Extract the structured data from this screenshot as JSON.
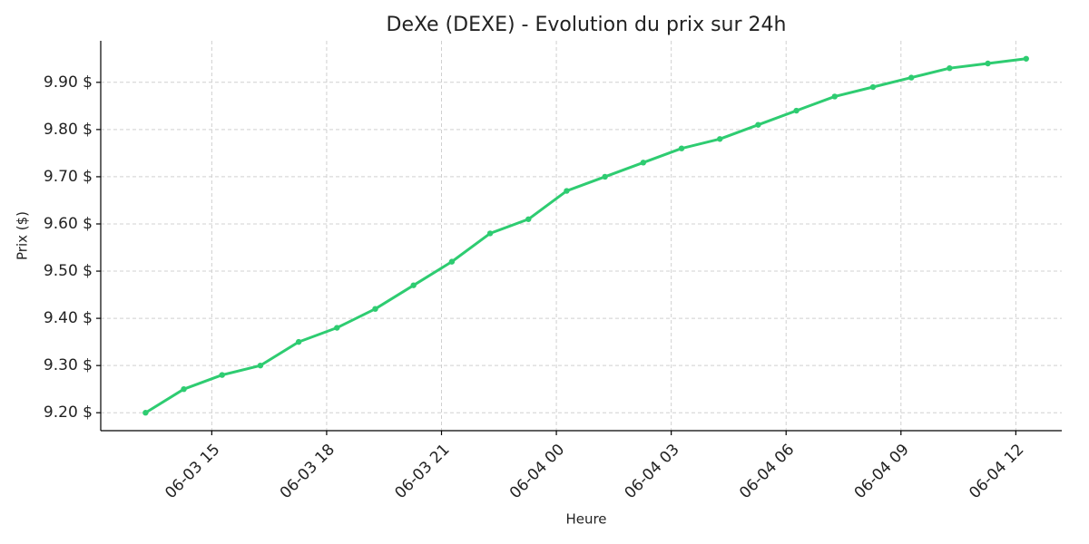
{
  "chart_data": {
    "type": "line",
    "title": "DeXe (DEXE) - Evolution du prix sur 24h",
    "x_label": "Heure",
    "y_label": "Prix ($)",
    "x": [
      13.27,
      14.27,
      15.27,
      16.27,
      17.27,
      18.27,
      19.27,
      20.27,
      21.27,
      22.27,
      23.27,
      24.27,
      25.27,
      26.27,
      27.27,
      28.27,
      29.27,
      30.27,
      31.27,
      32.27,
      33.27,
      34.27,
      35.27,
      36.27
    ],
    "series": [
      {
        "color": "#2ecc71",
        "values": [
          9.2,
          9.25,
          9.28,
          9.3,
          9.35,
          9.38,
          9.42,
          9.47,
          9.52,
          9.58,
          9.61,
          9.67,
          9.7,
          9.73,
          9.76,
          9.78,
          9.81,
          9.84,
          9.87,
          9.89,
          9.91,
          9.93,
          9.94,
          9.95
        ]
      }
    ],
    "xlim": [
      12.1,
      37.2
    ],
    "xticks": [
      {
        "value": 15,
        "label": "06-03 15"
      },
      {
        "value": 18,
        "label": "06-03 18"
      },
      {
        "value": 21,
        "label": "06-03 21"
      },
      {
        "value": 24,
        "label": "06-04 00"
      },
      {
        "value": 27,
        "label": "06-04 03"
      },
      {
        "value": 30,
        "label": "06-04 06"
      },
      {
        "value": 33,
        "label": "06-04 09"
      },
      {
        "value": 36,
        "label": "06-04 12"
      }
    ],
    "ylim": [
      9.162,
      9.988
    ],
    "yticks": [
      {
        "value": 9.2,
        "label": "9.20 $"
      },
      {
        "value": 9.3,
        "label": "9.30 $"
      },
      {
        "value": 9.4,
        "label": "9.40 $"
      },
      {
        "value": 9.5,
        "label": "9.50 $"
      },
      {
        "value": 9.6,
        "label": "9.60 $"
      },
      {
        "value": 9.7,
        "label": "9.70 $"
      },
      {
        "value": 9.8,
        "label": "9.80 $"
      },
      {
        "value": 9.9,
        "label": "9.90 $"
      }
    ],
    "grid": true
  }
}
